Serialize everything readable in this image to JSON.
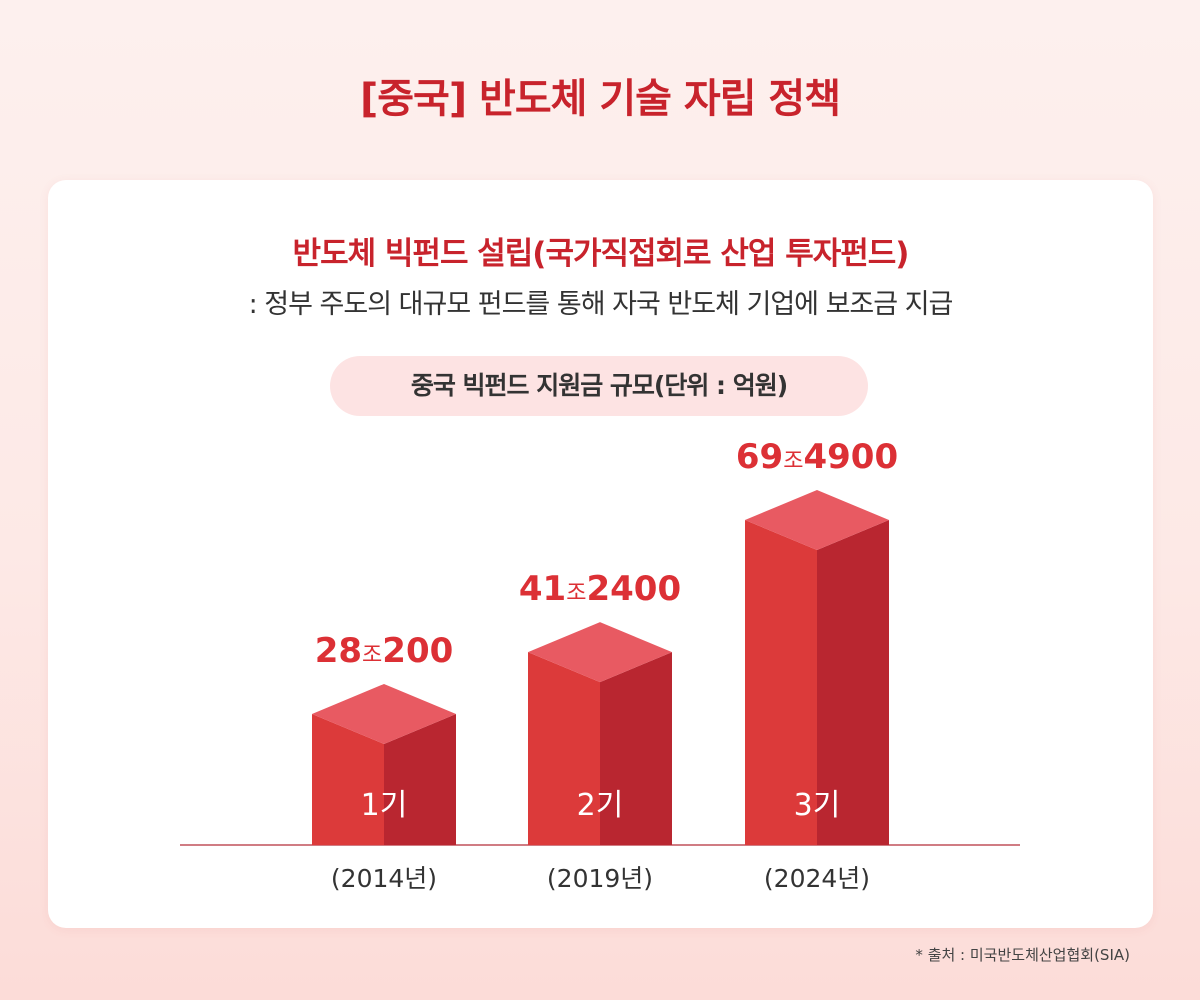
{
  "title": "[중국] 반도체 기술 자립 정책",
  "card": {
    "heading": "반도체 빅펀드 설립(국가직접회로 산업 투자펀드)",
    "subtitle": ": 정부 주도의 대규모 펀드를 통해 자국 반도체 기업에 보조금 지급",
    "chart_title": "중국 빅펀드 지원금 규모(단위 : 억원)"
  },
  "source": "* 출처 : 미국반도체산업협회(SIA)",
  "colors": {
    "title_red": "#c8232c",
    "bar_front": "#dc3a3a",
    "bar_side": "#b92630",
    "bar_top": "#e85a62",
    "value_label": "#dc3035",
    "axis_line": "#c0505a"
  },
  "chart_data": {
    "type": "bar",
    "title": "중국 빅펀드 지원금 규모(단위 : 억원)",
    "categories": [
      "1기",
      "2기",
      "3기"
    ],
    "category_years": [
      "(2014년)",
      "(2019년)",
      "(2024년)"
    ],
    "values": [
      280200,
      412400,
      694900
    ],
    "value_labels": [
      {
        "main": "28",
        "unit": "조",
        "rest": "200"
      },
      {
        "main": "41",
        "unit": "조",
        "rest": "2400"
      },
      {
        "main": "69",
        "unit": "조",
        "rest": "4900"
      }
    ],
    "ylabel": "",
    "xlabel": "",
    "grid": false
  }
}
